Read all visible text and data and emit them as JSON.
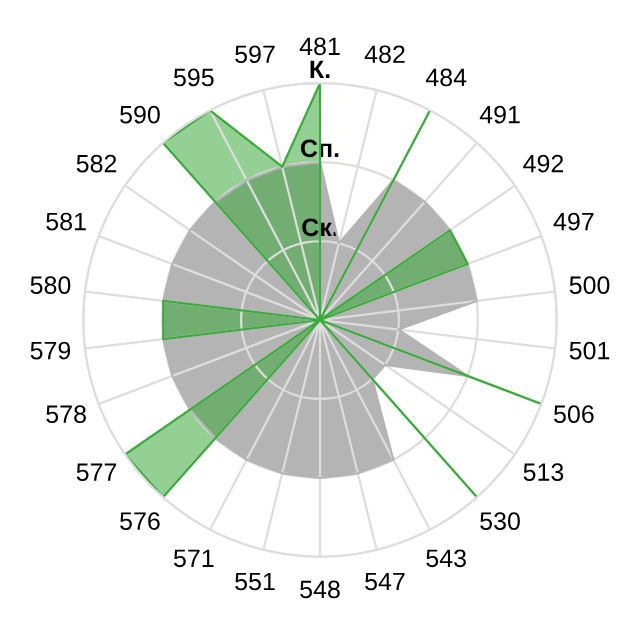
{
  "chart_data": {
    "type": "radar",
    "categories": [
      "481",
      "482",
      "484",
      "491",
      "492",
      "497",
      "500",
      "501",
      "506",
      "513",
      "530",
      "543",
      "547",
      "548",
      "551",
      "571",
      "576",
      "577",
      "578",
      "579",
      "580",
      "581",
      "582",
      "590",
      "595",
      "597"
    ],
    "series": [
      {
        "color": "#b4b4b4",
        "values": [
          2,
          1,
          2,
          2,
          2,
          2,
          2,
          1,
          2,
          1,
          1,
          2,
          2,
          2,
          2,
          2,
          2,
          2,
          2,
          2,
          2,
          2,
          2,
          2,
          2,
          2
        ]
      },
      {
        "color": "#3daa3d",
        "values": [
          3,
          0,
          3,
          0,
          2,
          2,
          0,
          0,
          3,
          0,
          3,
          0,
          0,
          0,
          0,
          0,
          3,
          3,
          0,
          2,
          2,
          0,
          0,
          3,
          3,
          2
        ]
      }
    ],
    "ylim": [
      0,
      3
    ],
    "yticks": [
      {
        "value": 1,
        "label": "Ск."
      },
      {
        "value": 2,
        "label": "Сп."
      },
      {
        "value": 3,
        "label": "К."
      }
    ],
    "grid": true
  }
}
